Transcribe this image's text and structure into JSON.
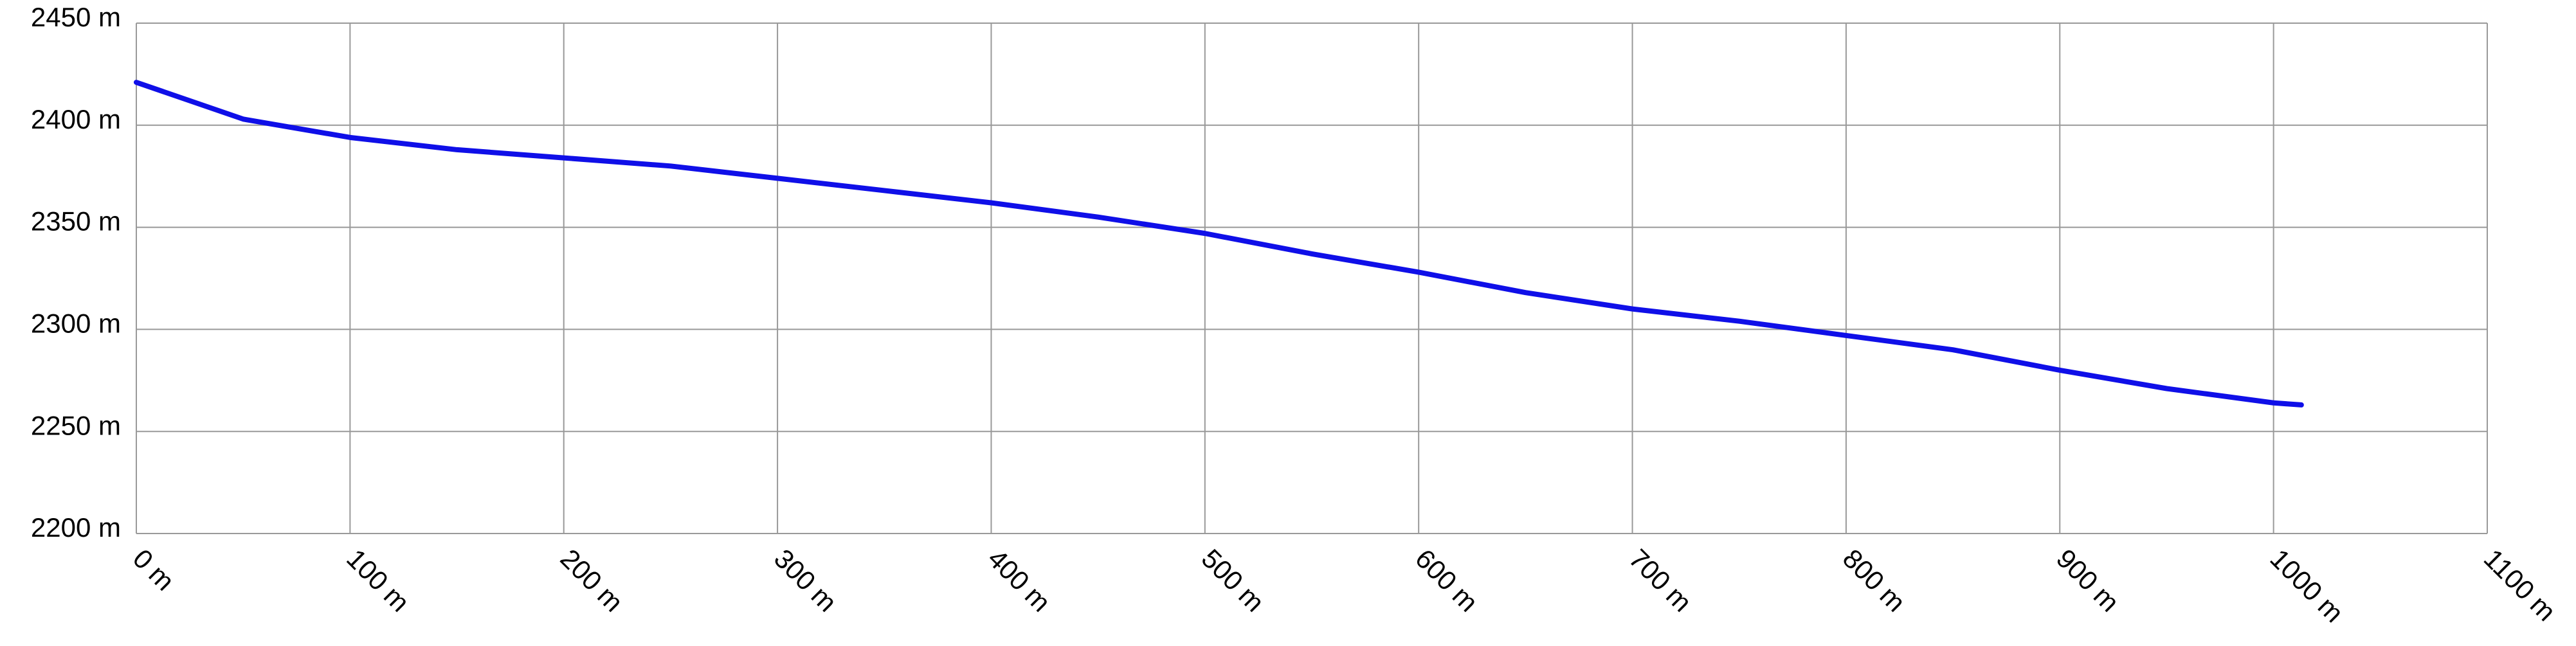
{
  "chart_data": {
    "type": "line",
    "x": [
      0,
      50,
      100,
      150,
      200,
      250,
      300,
      350,
      400,
      450,
      500,
      550,
      600,
      650,
      700,
      750,
      800,
      850,
      900,
      950,
      1000,
      1013
    ],
    "series": [
      {
        "color": "#0f0fe8",
        "values": [
          2421,
          2403,
          2394,
          2388,
          2384,
          2380,
          2374,
          2368,
          2362,
          2355,
          2347,
          2337,
          2328,
          2318,
          2310,
          2304,
          2297,
          2290,
          2280,
          2271,
          2264,
          2263
        ]
      }
    ],
    "xlim": [
      0,
      1100
    ],
    "xticks": [
      {
        "value": 0,
        "label": "0 m"
      },
      {
        "value": 100,
        "label": "100 m"
      },
      {
        "value": 200,
        "label": "200 m"
      },
      {
        "value": 300,
        "label": "300 m"
      },
      {
        "value": 400,
        "label": "400 m"
      },
      {
        "value": 500,
        "label": "500 m"
      },
      {
        "value": 600,
        "label": "600 m"
      },
      {
        "value": 700,
        "label": "700 m"
      },
      {
        "value": 800,
        "label": "800 m"
      },
      {
        "value": 900,
        "label": "900 m"
      },
      {
        "value": 1000,
        "label": "1000 m"
      },
      {
        "value": 1100,
        "label": "1100 m"
      }
    ],
    "ylim": [
      2200,
      2450
    ],
    "yticks": [
      {
        "value": 2200,
        "label": "2200 m"
      },
      {
        "value": 2250,
        "label": "2250 m"
      },
      {
        "value": 2300,
        "label": "2300 m"
      },
      {
        "value": 2350,
        "label": "2350 m"
      },
      {
        "value": 2400,
        "label": "2400 m"
      },
      {
        "value": 2450,
        "label": "2450 m"
      }
    ],
    "grid": true
  }
}
